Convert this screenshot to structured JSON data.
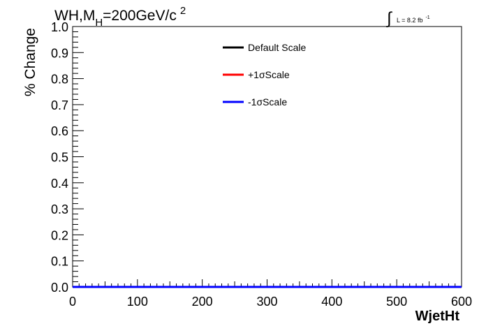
{
  "chart_data": {
    "type": "line",
    "title": {
      "main": "WH,M",
      "subscript": "H",
      "rest": "=200GeV/c",
      "superscript": "2"
    },
    "lumi": {
      "symbol": "∫",
      "text": "L = 8.2 fb",
      "superscript": "-1"
    },
    "xlabel": "WjetHt",
    "ylabel": "% Change",
    "xlim": [
      0,
      600
    ],
    "ylim": [
      0,
      1
    ],
    "x_ticks": [
      0,
      100,
      200,
      300,
      400,
      500,
      600
    ],
    "x_tick_labels": [
      "0",
      "100",
      "200",
      "300",
      "400",
      "500",
      "600"
    ],
    "y_ticks": [
      0.0,
      0.1,
      0.2,
      0.3,
      0.4,
      0.5,
      0.6,
      0.7,
      0.8,
      0.9,
      1.0
    ],
    "y_tick_labels": [
      "0.0",
      "0.1",
      "0.2",
      "0.3",
      "0.4",
      "0.5",
      "0.6",
      "0.7",
      "0.8",
      "0.9",
      "1.0"
    ],
    "grid": false,
    "legend_position": "top-center",
    "series": [
      {
        "name": "Default Scale",
        "color": "#000000",
        "x": [
          0,
          600
        ],
        "y": [
          0,
          0
        ]
      },
      {
        "name": "+1σScale",
        "color": "#ff0000",
        "x": [
          0,
          600
        ],
        "y": [
          0,
          0
        ]
      },
      {
        "name": "-1σScale",
        "color": "#0000ff",
        "x": [
          0,
          600
        ],
        "y": [
          0,
          0
        ]
      }
    ]
  }
}
